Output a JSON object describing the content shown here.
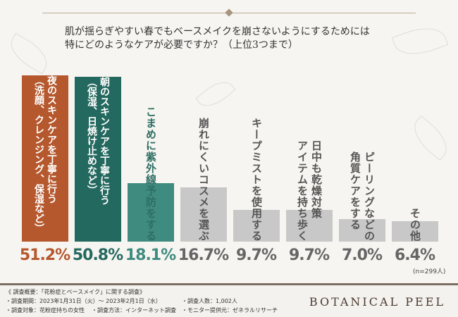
{
  "title": "肌が揺らぎやすい春でもベースメイクを崩さないようにするためには\n特にどのようなケアが必要ですか？（上位3つまで）",
  "chart_data": {
    "type": "bar",
    "categories": [
      "夜のスキンケアを丁寧に行う\n（洗顔、クレンジング、保湿など）",
      "朝のスキンケアを丁寧に行う\n（保湿、日焼け止めなど）",
      "こまめに紫外線予防をする",
      "崩れにくいコスメを選ぶ",
      "キープミストを使用する",
      "日中も乾燥対策\nアイテムを持ち歩く",
      "ピーリングなどの\n角質ケアをする",
      "その他"
    ],
    "values": [
      51.2,
      50.8,
      18.1,
      16.7,
      9.7,
      9.7,
      7.0,
      6.4
    ],
    "labels": [
      "51.2%",
      "50.8%",
      "18.1%",
      "16.7%",
      "9.7%",
      "9.7%",
      "7.0%",
      "6.4%"
    ],
    "colors": [
      "#b5582d",
      "#24695f",
      "#3f8b7f",
      "#c8c8c8",
      "#c8c8c8",
      "#c8c8c8",
      "#c8c8c8",
      "#c8c8c8"
    ],
    "label_colors": [
      "#ffffff",
      "#ffffff",
      "#2e6e64",
      "#555555",
      "#555555",
      "#555555",
      "#555555",
      "#555555"
    ],
    "value_colors": [
      "#b5582d",
      "#24695f",
      "#3f8b7f",
      "#666666",
      "#666666",
      "#666666",
      "#666666",
      "#666666"
    ],
    "ylim": [
      0,
      51.2
    ],
    "note": "(n=299人)"
  },
  "footer": {
    "heading": "《 調査概要：「花粉症とベースメイク」に関する調査》",
    "period": "・調査期間：2023年1月31日（火）～ 2023年2月1日（水）",
    "target": "・調査対象：花粉症持ちの女性",
    "method": "・調査方法：インターネット調査",
    "count": "・調査人数：1,002人",
    "provider": "・モニター提供元：ゼネラルリサーチ",
    "brand": "BOTANICAL PEEL"
  }
}
